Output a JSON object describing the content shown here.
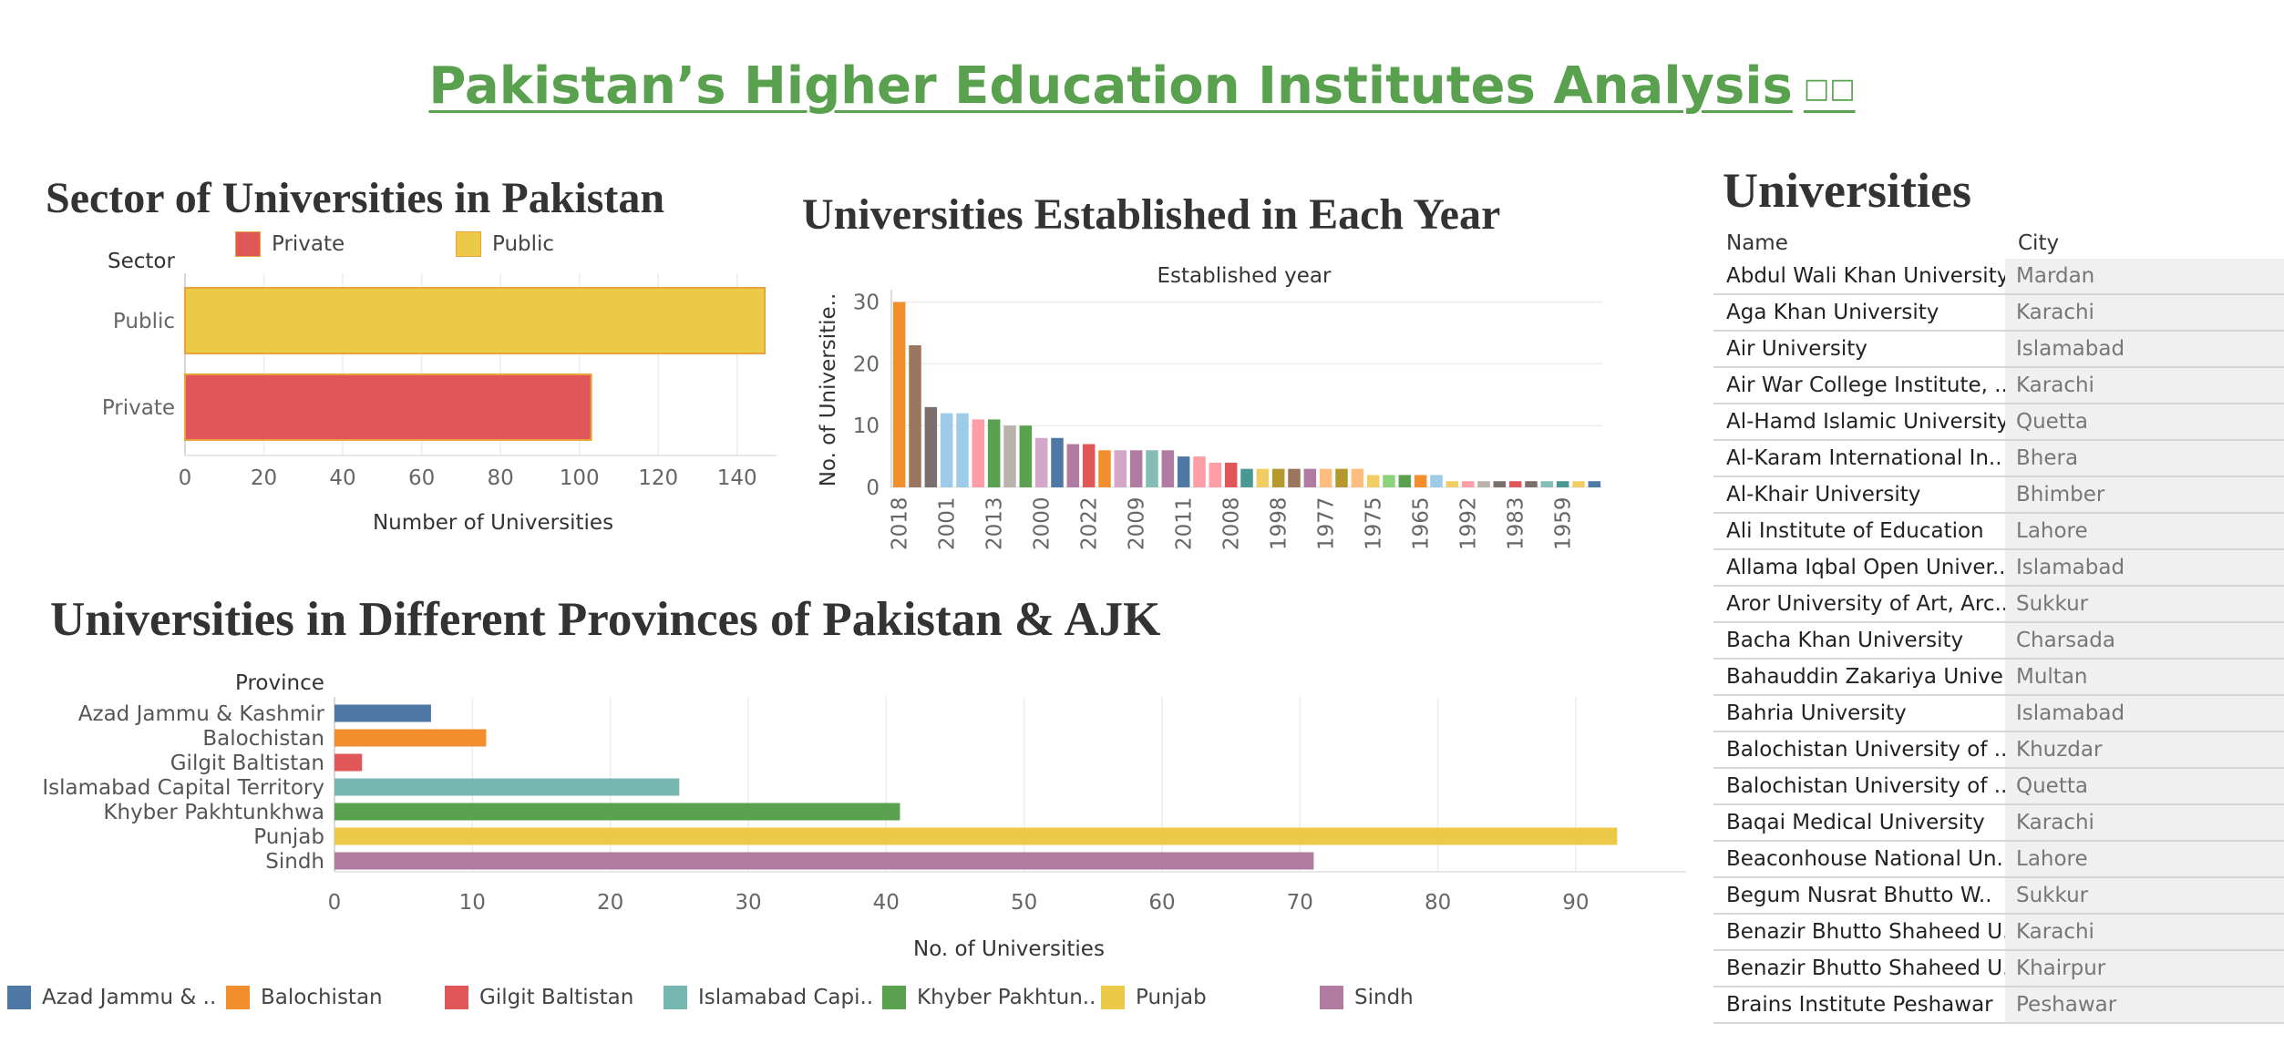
{
  "page": {
    "title": "Pakistan’s Higher Education Institutes Analysis",
    "title_icon": "□□"
  },
  "colors": {
    "title_green": "#59a14f",
    "private": "#e15759",
    "public": "#edc948"
  },
  "chart_data": [
    {
      "id": "sector",
      "type": "bar",
      "orientation": "horizontal",
      "title": "Sector of Universities in Pakistan",
      "row_header": "Sector",
      "categories": [
        "Public",
        "Private"
      ],
      "values": [
        147,
        103
      ],
      "colors": [
        "#edc948",
        "#e15759"
      ],
      "xlabel": "Number of Universities",
      "xlim": [
        0,
        150
      ],
      "xticks": [
        0,
        20,
        40,
        60,
        80,
        100,
        120,
        140
      ],
      "legend": [
        {
          "name": "Private",
          "color": "#e15759"
        },
        {
          "name": "Public",
          "color": "#edc948"
        }
      ],
      "legend_position": "top",
      "grid": true
    },
    {
      "id": "years",
      "type": "bar",
      "title": "Universities Established in Each Year",
      "header": "Established year",
      "ylabel": "No. of Universitie..",
      "ylim": [
        0,
        32
      ],
      "yticks": [
        0,
        10,
        20,
        30
      ],
      "grid": true,
      "values": [
        30,
        23,
        13,
        12,
        12,
        11,
        11,
        10,
        10,
        8,
        8,
        7,
        7,
        6,
        6,
        6,
        6,
        6,
        5,
        5,
        4,
        4,
        3,
        3,
        3,
        3,
        3,
        3,
        3,
        3,
        2,
        2,
        2,
        2,
        2,
        1,
        1,
        1,
        1,
        1,
        1,
        1,
        1,
        1,
        1
      ],
      "colors": [
        "#f28e2b",
        "#9c755f",
        "#79706e",
        "#a0cbe8",
        "#a0cbe8",
        "#ff9da7",
        "#59a14f",
        "#bab0ac",
        "#59a14f",
        "#d4a6c8",
        "#4e79a7",
        "#b07aa1",
        "#e15759",
        "#f28e2b",
        "#d4a6c8",
        "#b07aa1",
        "#86bcb6",
        "#b07aa1",
        "#4e79a7",
        "#ff9da7",
        "#ff9da7",
        "#e15759",
        "#499894",
        "#f1ce63",
        "#b6992d",
        "#9c755f",
        "#b07aa1",
        "#ffbe7d",
        "#b6992d",
        "#ffbe7d",
        "#f1ce63",
        "#8cd17d",
        "#59a14f",
        "#f28e2b",
        "#a0cbe8",
        "#f1ce63",
        "#ff9da7",
        "#bab0ac",
        "#79706e",
        "#e15759",
        "#79706e",
        "#86bcb6",
        "#499894",
        "#f1ce63",
        "#4e79a7"
      ],
      "tick_labels": [
        {
          "bar": 0,
          "label": "2018"
        },
        {
          "bar": 3,
          "label": "2001"
        },
        {
          "bar": 6,
          "label": "2013"
        },
        {
          "bar": 9,
          "label": "2000"
        },
        {
          "bar": 12,
          "label": "2022"
        },
        {
          "bar": 15,
          "label": "2009"
        },
        {
          "bar": 18,
          "label": "2011"
        },
        {
          "bar": 21,
          "label": "2008"
        },
        {
          "bar": 24,
          "label": "1998"
        },
        {
          "bar": 27,
          "label": "1977"
        },
        {
          "bar": 30,
          "label": "1975"
        },
        {
          "bar": 33,
          "label": "1965"
        },
        {
          "bar": 36,
          "label": "1992"
        },
        {
          "bar": 39,
          "label": "1983"
        },
        {
          "bar": 42,
          "label": "1959"
        }
      ]
    },
    {
      "id": "provinces",
      "type": "bar",
      "orientation": "horizontal",
      "title": "Universities in Different Provinces of Pakistan & AJK",
      "row_header": "Province",
      "categories": [
        "Azad Jammu & Kashmir",
        "Balochistan",
        "Gilgit Baltistan",
        "Islamabad Capital Territory",
        "Khyber Pakhtunkhwa",
        "Punjab",
        "Sindh"
      ],
      "values": [
        7,
        11,
        2,
        25,
        41,
        93,
        71
      ],
      "colors": [
        "#4e79a7",
        "#f28e2b",
        "#e15759",
        "#76b7b2",
        "#59a14f",
        "#edc948",
        "#b07aa1"
      ],
      "xlabel": "No. of Universities",
      "xlim": [
        0,
        98
      ],
      "xticks": [
        0,
        10,
        20,
        30,
        40,
        50,
        60,
        70,
        80,
        90
      ],
      "legend": [
        {
          "name": "Azad Jammu & ..",
          "color": "#4e79a7"
        },
        {
          "name": "Balochistan",
          "color": "#f28e2b"
        },
        {
          "name": "Gilgit Baltistan",
          "color": "#e15759"
        },
        {
          "name": "Islamabad Capi..",
          "color": "#76b7b2"
        },
        {
          "name": "Khyber Pakhtun..",
          "color": "#59a14f"
        },
        {
          "name": "Punjab",
          "color": "#edc948"
        },
        {
          "name": "Sindh",
          "color": "#b07aa1"
        }
      ],
      "legend_position": "bottom",
      "grid": true
    },
    {
      "id": "universities",
      "type": "table",
      "title": "Universities",
      "columns": [
        "Name",
        "City"
      ],
      "rows": [
        [
          "Abdul Wali Khan University",
          "Mardan"
        ],
        [
          "Aga Khan University",
          "Karachi"
        ],
        [
          "Air University",
          "Islamabad"
        ],
        [
          "Air War College Institute, ..",
          "Karachi"
        ],
        [
          "Al-Hamd Islamic University",
          "Quetta"
        ],
        [
          "Al-Karam International In..",
          "Bhera"
        ],
        [
          "Al-Khair University",
          "Bhimber"
        ],
        [
          "Ali Institute of Education",
          "Lahore"
        ],
        [
          "Allama Iqbal Open Univer..",
          "Islamabad"
        ],
        [
          "Aror University of Art, Arc..",
          "Sukkur"
        ],
        [
          "Bacha Khan University",
          "Charsada"
        ],
        [
          "Bahauddin Zakariya Unive..",
          "Multan"
        ],
        [
          "Bahria University",
          "Islamabad"
        ],
        [
          "Balochistan University of ..",
          "Khuzdar"
        ],
        [
          "Balochistan University of ..",
          "Quetta"
        ],
        [
          "Baqai Medical University",
          "Karachi"
        ],
        [
          "Beaconhouse National Un..",
          "Lahore"
        ],
        [
          "Begum Nusrat Bhutto W..",
          "Sukkur"
        ],
        [
          "Benazir Bhutto Shaheed U..",
          "Karachi"
        ],
        [
          "Benazir Bhutto Shaheed U..",
          "Khairpur"
        ],
        [
          "Brains Institute Peshawar",
          "Peshawar"
        ]
      ]
    }
  ]
}
